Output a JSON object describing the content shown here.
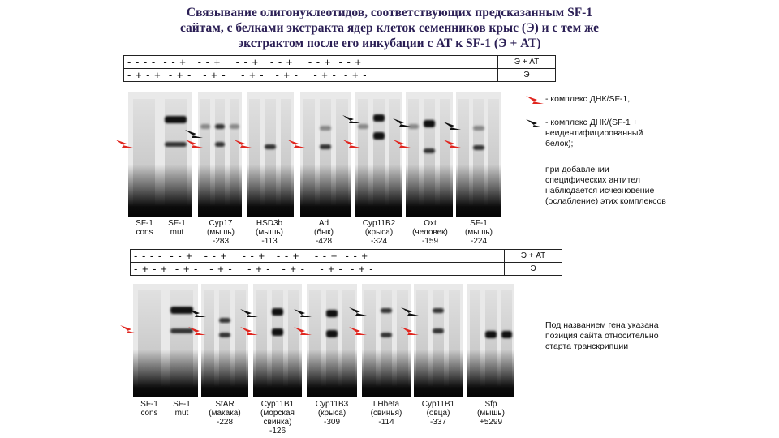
{
  "title": {
    "line1": "Связывание олигонуклеотидов, соответствующих предсказанным SF-1",
    "line2": "сайтам,  с белками экстракта ядер клеток семенников крыс (Э) и с тем же",
    "line3": "экстрактом после его инкубации с АТ к SF-1 (Э + АТ)"
  },
  "top_row": {
    "ab_signs": "- - - -  - - +   - - +    - - +   - - +    - - +  - - +",
    "extract_signs": "- + - +  - + -   - + -    - + -   - + -    - + -  - + -",
    "ab_label": "Э + АТ",
    "extract_label": "Э"
  },
  "bottom_row": {
    "ab_signs": "- - - -  - - +   - - +    - - +   - - +    - - +  - - +",
    "extract_signs": "- + - +  - + -   - + -    - + -   - + -    - + -  - + -",
    "ab_label": "Э + АТ",
    "extract_label": "Э"
  },
  "legend": {
    "red_arrow": "- комплекс ДНК/SF-1,",
    "black_arrow": "- комплекс ДНК/(SF-1 + неидентифицированный белок);",
    "note": "при добавлении специфических антител наблюдается исчезновение (ослабление) этих комплексов",
    "position_note": "Под названием гена указана позиция сайта относительно старта транскрипции"
  },
  "top_captions": [
    {
      "text": "SF-1\ncons"
    },
    {
      "text": "SF-1\nmut"
    },
    {
      "text": "Cyp17\n(мышь)\n-283"
    },
    {
      "text": "HSD3b\n(мышь)\n-113"
    },
    {
      "text": "Ad\n(бык)\n-428"
    },
    {
      "text": "Cyp11B2\n(крыса)\n-324"
    },
    {
      "text": "Oxt\n(человек)\n-159"
    },
    {
      "text": "SF-1\n(мышь)\n-224"
    }
  ],
  "bottom_captions": [
    {
      "text": "SF-1\ncons"
    },
    {
      "text": "SF-1\nmut"
    },
    {
      "text": "StAR\n(макака)\n-228"
    },
    {
      "text": "Cyp11B1\n(морская\nсвинка)\n-126"
    },
    {
      "text": "Cyp11B3\n(крыса)\n-309"
    },
    {
      "text": "LHbeta\n(свинья)\n-114"
    },
    {
      "text": "Cyp11B1\n(овца)\n-337"
    },
    {
      "text": "Sfp\n(мышь)\n+5299"
    }
  ],
  "colors": {
    "red_arrow": "#e0261f",
    "black_arrow": "#111111",
    "title": "#2b1f55"
  }
}
